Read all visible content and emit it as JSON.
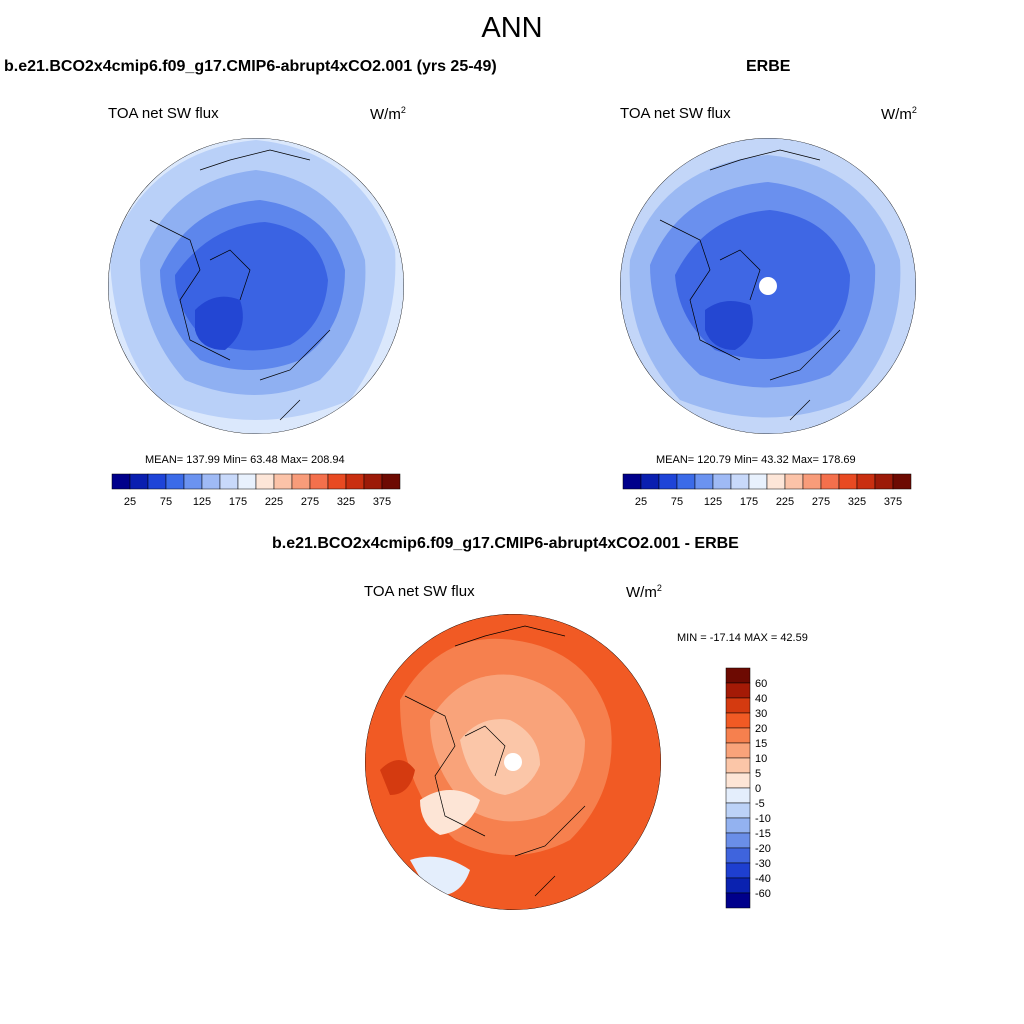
{
  "main_title": "ANN",
  "panels": [
    {
      "title": "b.e21.BCO2x4cmip6.f09_g17.CMIP6-abrupt4xCO2.001 (yrs 25-49)",
      "variable": "TOA net SW flux",
      "units_base": "W/m",
      "units_exp": "2",
      "stats": "MEAN= 137.99  Min=  63.48  Max= 208.94",
      "colorbar_labels": [
        "25",
        "75",
        "125",
        "175",
        "225",
        "275",
        "325",
        "375"
      ],
      "mean": 137.99,
      "min": 63.48,
      "max": 208.94
    },
    {
      "title": "ERBE",
      "variable": "TOA net SW flux",
      "units_base": "W/m",
      "units_exp": "2",
      "stats": "MEAN= 120.79  Min=  43.32  Max= 178.69",
      "colorbar_labels": [
        "25",
        "75",
        "125",
        "175",
        "225",
        "275",
        "325",
        "375"
      ],
      "mean": 120.79,
      "min": 43.32,
      "max": 178.69
    },
    {
      "title": "b.e21.BCO2x4cmip6.f09_g17.CMIP6-abrupt4xCO2.001 - ERBE",
      "variable": "TOA net SW flux",
      "units_base": "W/m",
      "units_exp": "2",
      "stats": "MIN = -17.14 MAX =  42.59",
      "colorbar_labels": [
        "60",
        "40",
        "30",
        "20",
        "15",
        "10",
        "5",
        "0",
        "-5",
        "-10",
        "-15",
        "-20",
        "-30",
        "-40",
        "-60"
      ],
      "min": -17.14,
      "max": 42.59
    }
  ],
  "colors": {
    "abs_scale": [
      "#00008b",
      "#0a1fb0",
      "#1e44d8",
      "#3b6be8",
      "#6b93f0",
      "#9fbaf5",
      "#c8d9fa",
      "#e8f1fd",
      "#fde6d8",
      "#fbc3a8",
      "#f89c7a",
      "#f4704c",
      "#e84a22",
      "#c92f10",
      "#9c1a08",
      "#6d0a02"
    ],
    "diff_scale": [
      "#6d0a02",
      "#a41a06",
      "#d43a10",
      "#f15a24",
      "#f6804e",
      "#f9a37a",
      "#fbc6a8",
      "#fde5d6",
      "#e4eefc",
      "#bcd2f7",
      "#93b2f0",
      "#6a8ee8",
      "#3f64dd",
      "#1e3fd0",
      "#0a22b0",
      "#00008b"
    ]
  }
}
